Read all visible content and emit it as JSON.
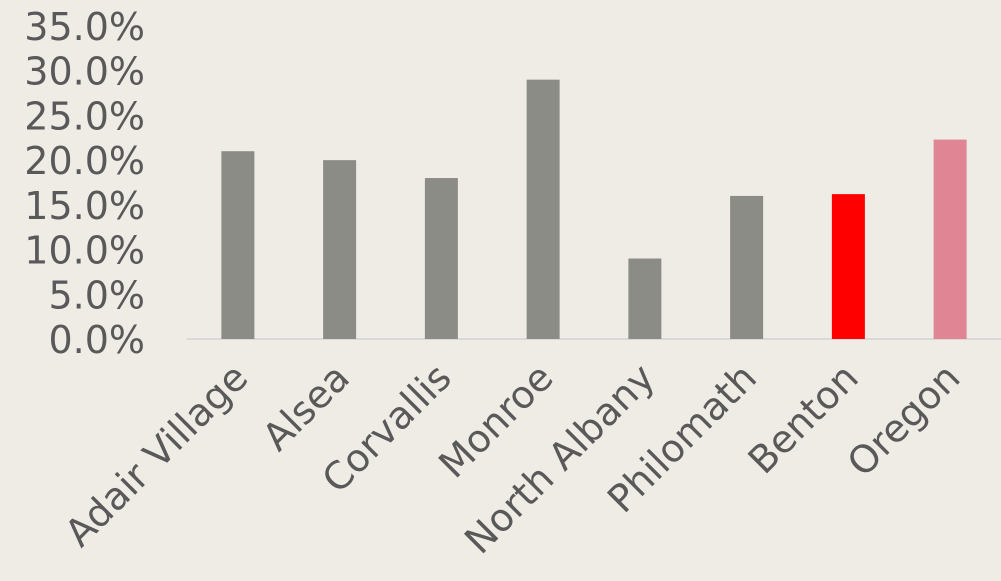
{
  "chart_data": {
    "type": "bar",
    "title": "",
    "xlabel": "",
    "ylabel": "",
    "ylim": [
      0,
      35
    ],
    "y_tick_labels": [
      "0.0%",
      "5.0%",
      "10.0%",
      "15.0%",
      "20.0%",
      "25.0%",
      "30.0%",
      "35.0%"
    ],
    "categories": [
      "Adair Village",
      "Alsea",
      "Corvallis",
      "Monroe",
      "North Albany",
      "Philomath",
      "Benton",
      "Oregon"
    ],
    "values": [
      21.0,
      20.0,
      18.0,
      29.0,
      9.0,
      16.0,
      16.2,
      22.3
    ],
    "bar_colors": [
      "#8c8c87",
      "#8c8c87",
      "#8c8c87",
      "#8c8c87",
      "#8c8c87",
      "#8c8c87",
      "#ff0000",
      "#e08593"
    ],
    "grid": false,
    "legend": "none"
  },
  "colors": {
    "background": "#efece6",
    "axis_line": "#d9d9d9",
    "text": "#595959"
  }
}
